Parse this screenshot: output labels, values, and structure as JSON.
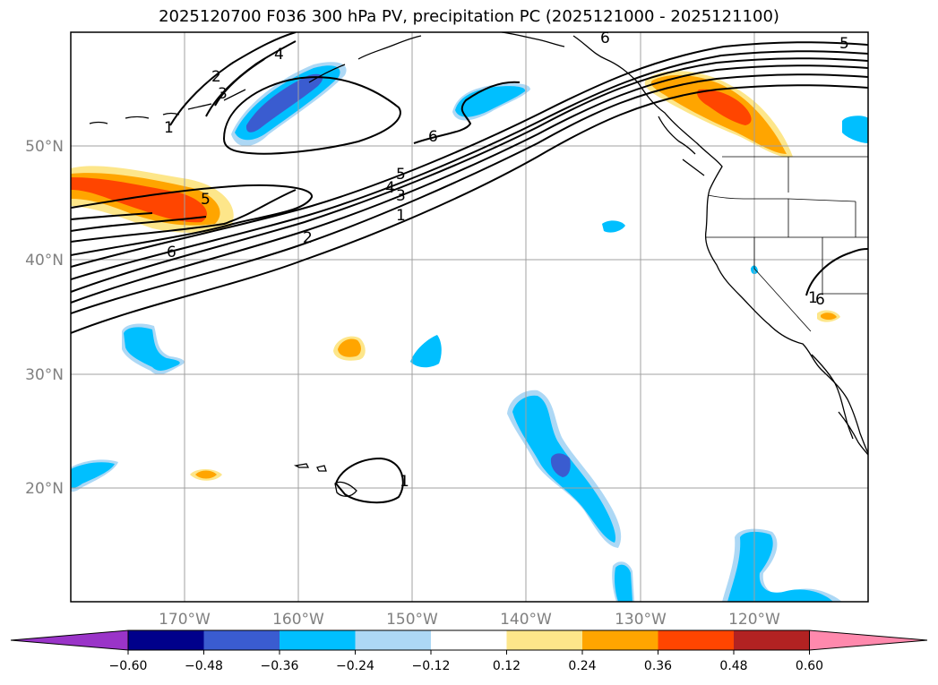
{
  "title": "2025120700 F036 300 hPa PV, precipitation PC (2025121000 - 2025121100)",
  "map": {
    "lat_labels": [
      "50°N",
      "40°N",
      "30°N",
      "20°N"
    ],
    "lon_labels": [
      "170°W",
      "160°W",
      "150°W",
      "140°W",
      "130°W",
      "120°W"
    ],
    "contour_labels": [
      "1",
      "2",
      "3",
      "4",
      "5",
      "6",
      "6",
      "5",
      "4",
      "3",
      "2",
      "1",
      "6",
      "6",
      "1",
      "5",
      "1"
    ]
  },
  "colorbar": {
    "ticks": [
      "−0.60",
      "−0.48",
      "−0.36",
      "−0.24",
      "−0.12",
      "0.12",
      "0.24",
      "0.36",
      "0.48",
      "0.60"
    ],
    "colors": [
      "#9a34c8",
      "#00008b",
      "#3a5cd0",
      "#00bfff",
      "#add8f5",
      "#ffffff",
      "#fde68a",
      "#ffa500",
      "#ff4500",
      "#b22222",
      "#ff89ad"
    ]
  }
}
